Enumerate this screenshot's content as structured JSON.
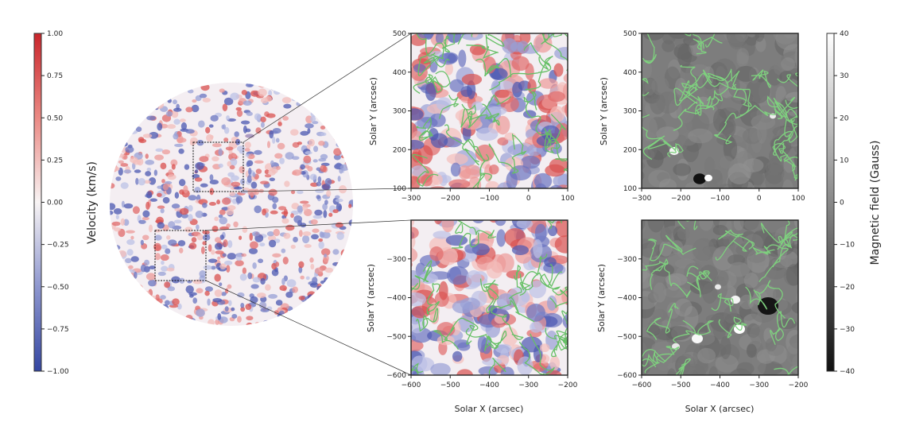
{
  "chart_data": [
    {
      "type": "heatmap",
      "name": "full-disk-velocity",
      "colormap": "bwr",
      "colorbar": {
        "label": "Velocity (km/s)",
        "range": [
          -1.0,
          1.0
        ],
        "ticks": [
          1.0,
          0.75,
          0.5,
          0.25,
          0.0,
          -0.25,
          -0.5,
          -0.75,
          -1.0
        ],
        "tick_labels": [
          "1.00",
          "0.75",
          "0.50",
          "0.25",
          "0.00",
          "−0.25",
          "−0.50",
          "−0.75",
          "−1.00"
        ],
        "colors": {
          "positive": "#d62728",
          "zero": "#ffffff",
          "negative": "#3b4cc0"
        }
      },
      "insets": [
        {
          "region": "north",
          "x_range": [
            -300,
            100
          ],
          "y_range": [
            100,
            500
          ]
        },
        {
          "region": "south",
          "x_range": [
            -600,
            -200
          ],
          "y_range": [
            -600,
            -200
          ]
        }
      ]
    },
    {
      "type": "heatmap",
      "name": "velocity-zoom-north",
      "colormap": "bwr",
      "xlim": [
        -300,
        100
      ],
      "ylim": [
        100,
        500
      ],
      "xticks": [
        -300,
        -200,
        -100,
        0,
        100
      ],
      "yticks": [
        100,
        200,
        300,
        400,
        500
      ],
      "xlabel": "",
      "ylabel": "Solar Y (arcsec)",
      "contour_color": "#66c066"
    },
    {
      "type": "heatmap",
      "name": "magnetic-zoom-north",
      "colormap": "gray",
      "xlim": [
        -300,
        100
      ],
      "ylim": [
        100,
        500
      ],
      "xticks": [
        -300,
        -200,
        -100,
        0,
        100
      ],
      "yticks": [
        100,
        200,
        300,
        400,
        500
      ],
      "xlabel": "",
      "ylabel": "Solar Y (arcsec)",
      "contour_color": "#7ed17e"
    },
    {
      "type": "heatmap",
      "name": "velocity-zoom-south",
      "colormap": "bwr",
      "xlim": [
        -600,
        -200
      ],
      "ylim": [
        -600,
        -200
      ],
      "xticks": [
        -600,
        -500,
        -400,
        -300,
        -200
      ],
      "yticks": [
        -300,
        -400,
        -500,
        -600
      ],
      "xlabel": "Solar X (arcsec)",
      "ylabel": "Solar Y (arcsec)",
      "contour_color": "#66c066"
    },
    {
      "type": "heatmap",
      "name": "magnetic-zoom-south",
      "colormap": "gray",
      "xlim": [
        -600,
        -200
      ],
      "ylim": [
        -600,
        -200
      ],
      "xticks": [
        -600,
        -500,
        -400,
        -300,
        -200
      ],
      "yticks": [
        -300,
        -400,
        -500,
        -600
      ],
      "xlabel": "Solar X (arcsec)",
      "ylabel": "Solar Y (arcsec)",
      "contour_color": "#7ed17e"
    },
    {
      "type": "heatmap",
      "name": "magnetic-colorbar",
      "colormap": "gray",
      "colorbar": {
        "label": "Magnetic field (Gauss)",
        "range": [
          -40,
          40
        ],
        "ticks": [
          40,
          30,
          20,
          10,
          0,
          -10,
          -20,
          -30,
          -40
        ],
        "tick_labels": [
          "40",
          "30",
          "20",
          "10",
          "0",
          "−10",
          "−20",
          "−30",
          "−40"
        ]
      }
    }
  ],
  "panels_text": {
    "velocity_colorbar_label": "Velocity (km/s)",
    "magnetic_colorbar_label": "Magnetic field (Gauss)",
    "solar_y_label": "Solar Y (arcsec)",
    "solar_x_label": "Solar X (arcsec)"
  }
}
